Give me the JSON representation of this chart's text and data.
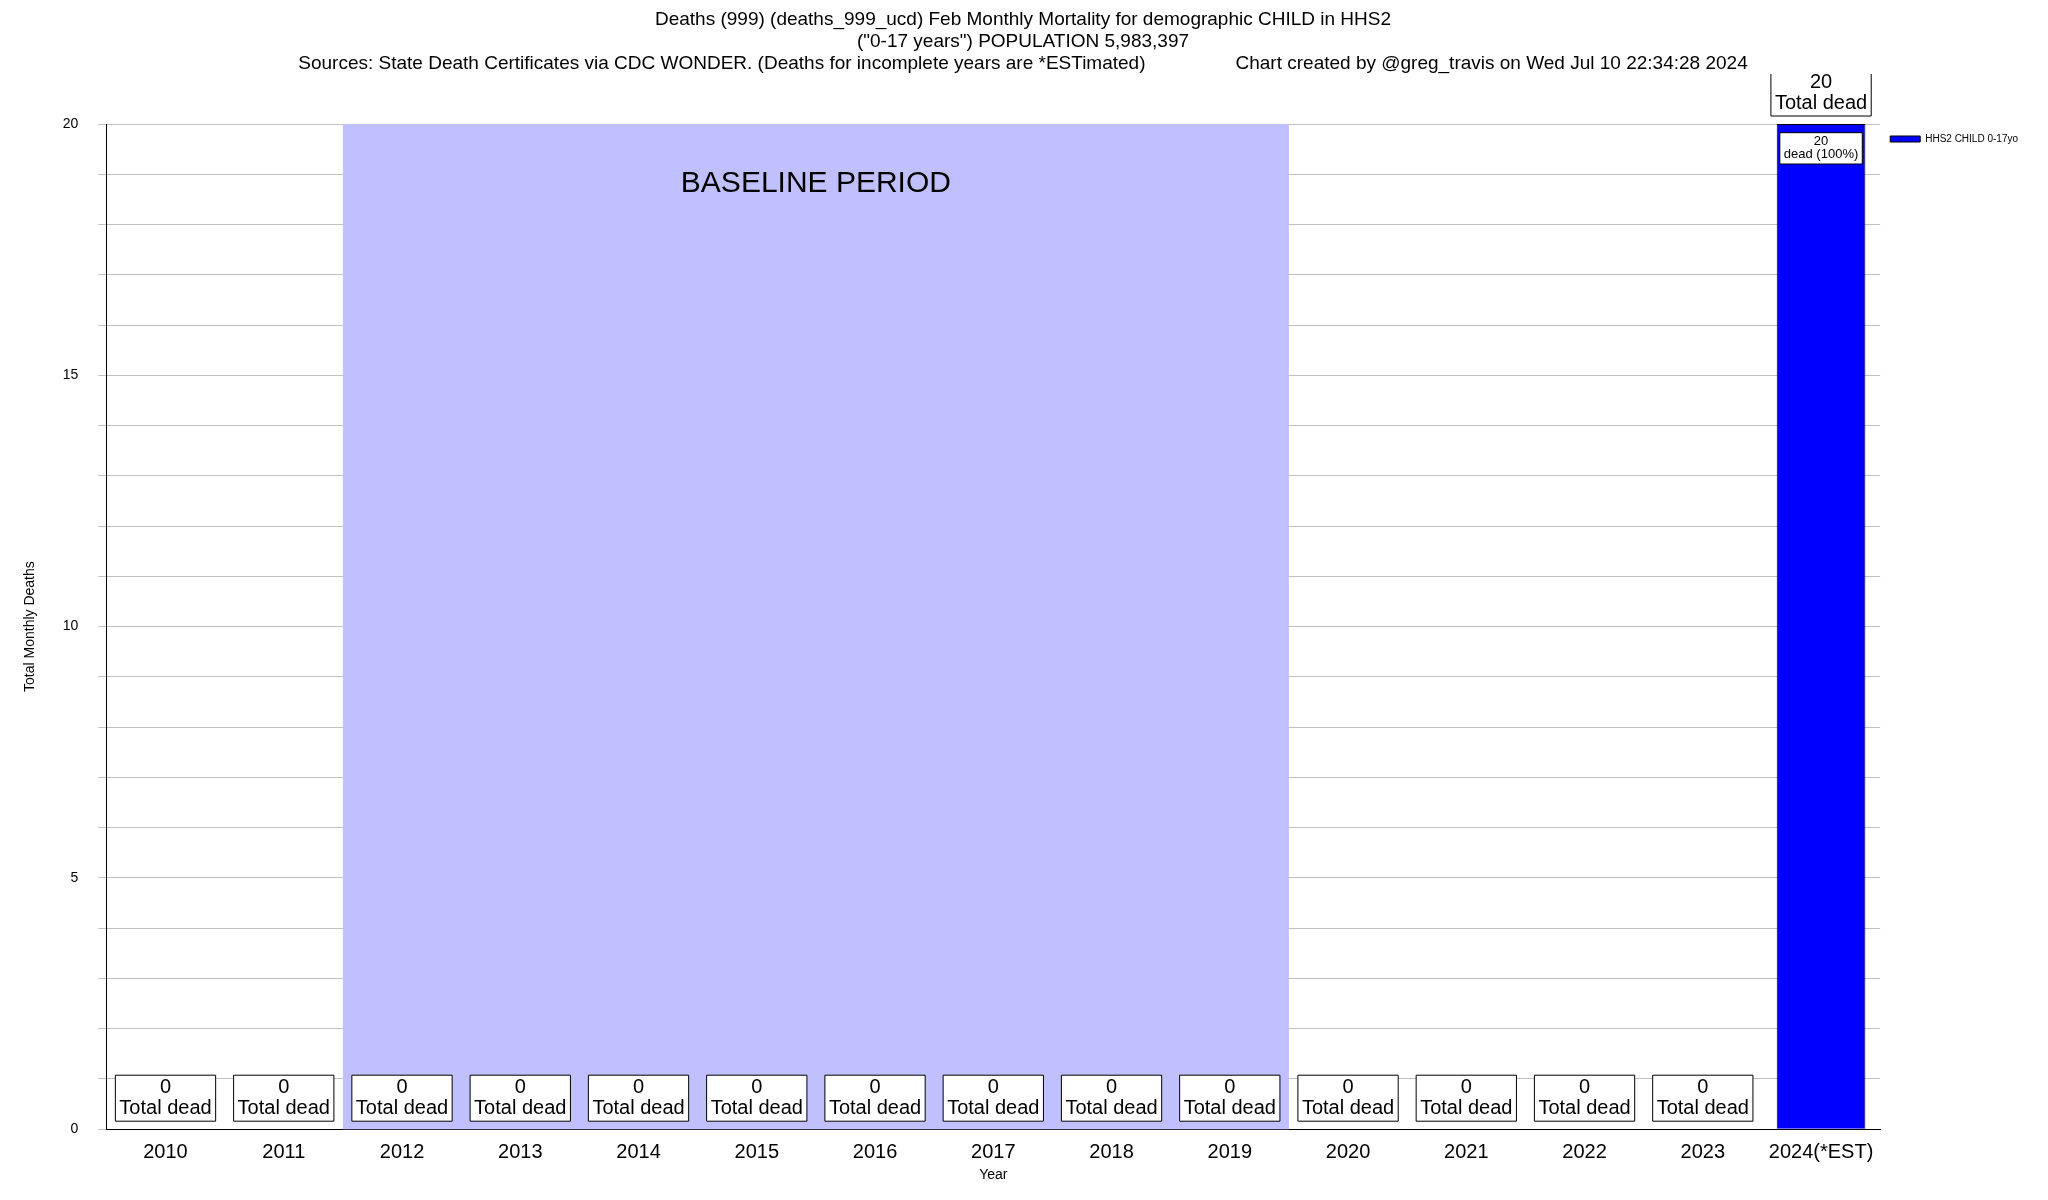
{
  "chart_data": {
    "type": "bar",
    "title": "Deaths (999) (deaths_999_ucd) Feb Monthly Mortality for demographic CHILD in HHS2\n(\"0-17 years\") POPULATION 5,983,397",
    "subtitle": "Sources: State Death Certificates via CDC WONDER. (Deaths for incomplete years are *ESTimated)",
    "annotations": [
      "Chart created by @greg_travis on Wed Jul 10 22:34:28 2024",
      {
        "text": "20\ndead (100%)",
        "x": "2024(*EST)",
        "y": 20
      }
    ],
    "xlabel": "Year",
    "ylabel": "Total Monthly Deaths",
    "categories": [
      "2010",
      "2011",
      "2012",
      "2013",
      "2014",
      "2015",
      "2016",
      "2017",
      "2018",
      "2019",
      "2020",
      "2021",
      "2022",
      "2023",
      "2024(*EST)"
    ],
    "series": [
      {
        "name": "HHS2 CHILD 0-17yo",
        "color": "#0000ff",
        "values": [
          0,
          0,
          0,
          0,
          0,
          0,
          0,
          0,
          0,
          0,
          0,
          0,
          0,
          0,
          20
        ],
        "value_labels": [
          "0\nTotal dead",
          "0\nTotal dead",
          "0\nTotal dead",
          "0\nTotal dead",
          "0\nTotal dead",
          "0\nTotal dead",
          "0\nTotal dead",
          "0\nTotal dead",
          "0\nTotal dead",
          "0\nTotal dead",
          "0\nTotal dead",
          "0\nTotal dead",
          "0\nTotal dead",
          "0\nTotal dead",
          "20\nTotal dead"
        ]
      }
    ],
    "ylim": [
      0,
      20
    ],
    "yticks": [
      0,
      {
        "value": 1,
        "label": null
      },
      {
        "value": 2,
        "label": null
      },
      {
        "value": 3,
        "label": null
      },
      {
        "value": 4,
        "label": null
      },
      5,
      {
        "value": 6,
        "label": null
      },
      {
        "value": 7,
        "label": null
      },
      {
        "value": 8,
        "label": null
      },
      {
        "value": 9,
        "label": null
      },
      10,
      {
        "value": 11,
        "label": null
      },
      {
        "value": 12,
        "label": null
      },
      {
        "value": 13,
        "label": null
      },
      {
        "value": 14,
        "label": null
      },
      15,
      {
        "value": 16,
        "label": null
      },
      {
        "value": 17,
        "label": null
      },
      {
        "value": 18,
        "label": null
      },
      {
        "value": 19,
        "label": null
      },
      20
    ],
    "grid": "y",
    "legend": "top right",
    "bands": [
      {
        "axis": "x",
        "from": "2012",
        "to": "2019",
        "label": "BASELINE PERIOD",
        "color": "#c0c0ff"
      }
    ]
  }
}
